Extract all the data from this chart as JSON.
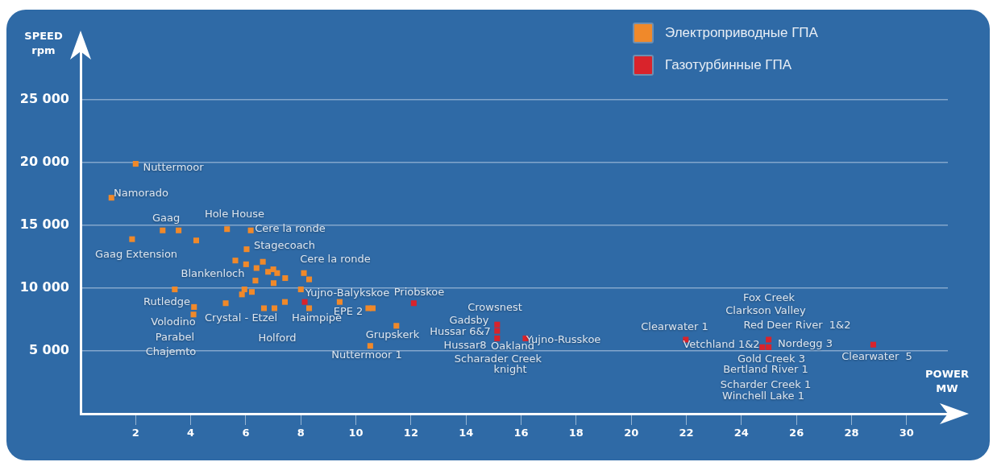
{
  "chart_data": {
    "type": "scatter",
    "xlabel": "POWER MW",
    "ylabel": "SPEED rpm",
    "xlim": [
      0,
      31.5
    ],
    "ylim": [
      0,
      30000
    ],
    "xticks": [
      2,
      4,
      6,
      8,
      10,
      12,
      14,
      16,
      18,
      20,
      22,
      24,
      26,
      28,
      30
    ],
    "yticks": [
      {
        "value": 5000,
        "label": "5 000"
      },
      {
        "value": 10000,
        "label": "10 000"
      },
      {
        "value": 15000,
        "label": "15 000"
      },
      {
        "value": 20000,
        "label": "20 000"
      },
      {
        "value": 25000,
        "label": "25 000"
      }
    ],
    "grid": "y",
    "legend": "top right",
    "marker": "square",
    "series": [
      {
        "name": "Электроприводные ГПА",
        "color": "#f0892a",
        "x": [
          2.0,
          1.12,
          1.87,
          2.98,
          3.56,
          4.2,
          5.32,
          6.18,
          6.03,
          5.62,
          6.01,
          6.39,
          6.62,
          6.81,
          7.0,
          7.14,
          7.43,
          6.35,
          7.01,
          8.11,
          8.3,
          8.0,
          5.95,
          5.86,
          6.22,
          5.27,
          6.66,
          7.04,
          7.42,
          8.3,
          9.41,
          10.45,
          10.61,
          11.47,
          10.52,
          3.42,
          4.12,
          4.1
        ],
        "values": [
          19900,
          17200,
          13900,
          14600,
          14600,
          13800,
          14700,
          14600,
          13100,
          12200,
          11900,
          11600,
          12100,
          11300,
          11500,
          11200,
          10800,
          10600,
          10400,
          11200,
          10700,
          9900,
          9900,
          9500,
          9700,
          8800,
          8400,
          8400,
          8900,
          8400,
          8900,
          8400,
          8400,
          7000,
          5400,
          9900,
          8500,
          7900
        ]
      },
      {
        "name": "Газотурбинные ГПА",
        "color": "#d9232b",
        "x": [
          8.14,
          12.1,
          15.13,
          15.13,
          15.13,
          16.16,
          21.98,
          24.99,
          24.76,
          24.99,
          28.79
        ],
        "values": [
          8900,
          8800,
          7100,
          6600,
          6000,
          6000,
          5900,
          5900,
          5300,
          5300,
          5500
        ]
      }
    ],
    "annotations": [
      "Nuttermoor",
      "Namorado",
      "Gaag",
      "Gaag Extension",
      "Hole House",
      "Cere la ronde",
      "Stagecoach",
      "Cere la ronde",
      "Blankenloch",
      "Rutledge",
      "Yujno-Balykskoe",
      "EPE 2",
      "Crystal - Etzel",
      "Haimpipe",
      "Volodino",
      "Parabel",
      "Chajemto",
      "Holford",
      "Grupskerk",
      "Nuttermoor 1",
      "Priobskoe",
      "Crowsnest",
      "Gadsby",
      "Hussar 6&7",
      "Hussar8",
      "Oakland",
      "Yujno-Russkoe",
      "Scharader Creek",
      "knight",
      "Clearwater 1",
      "Vetchland 1&2",
      "Fox Creek",
      "Clarkson Valley",
      "Red Deer River  1&2",
      "Nordegg 3",
      "Clearwater  5",
      "Gold Creek 3",
      "Bertland River 1",
      "Scharder Creek 1",
      "Winchell Lake 1"
    ]
  }
}
